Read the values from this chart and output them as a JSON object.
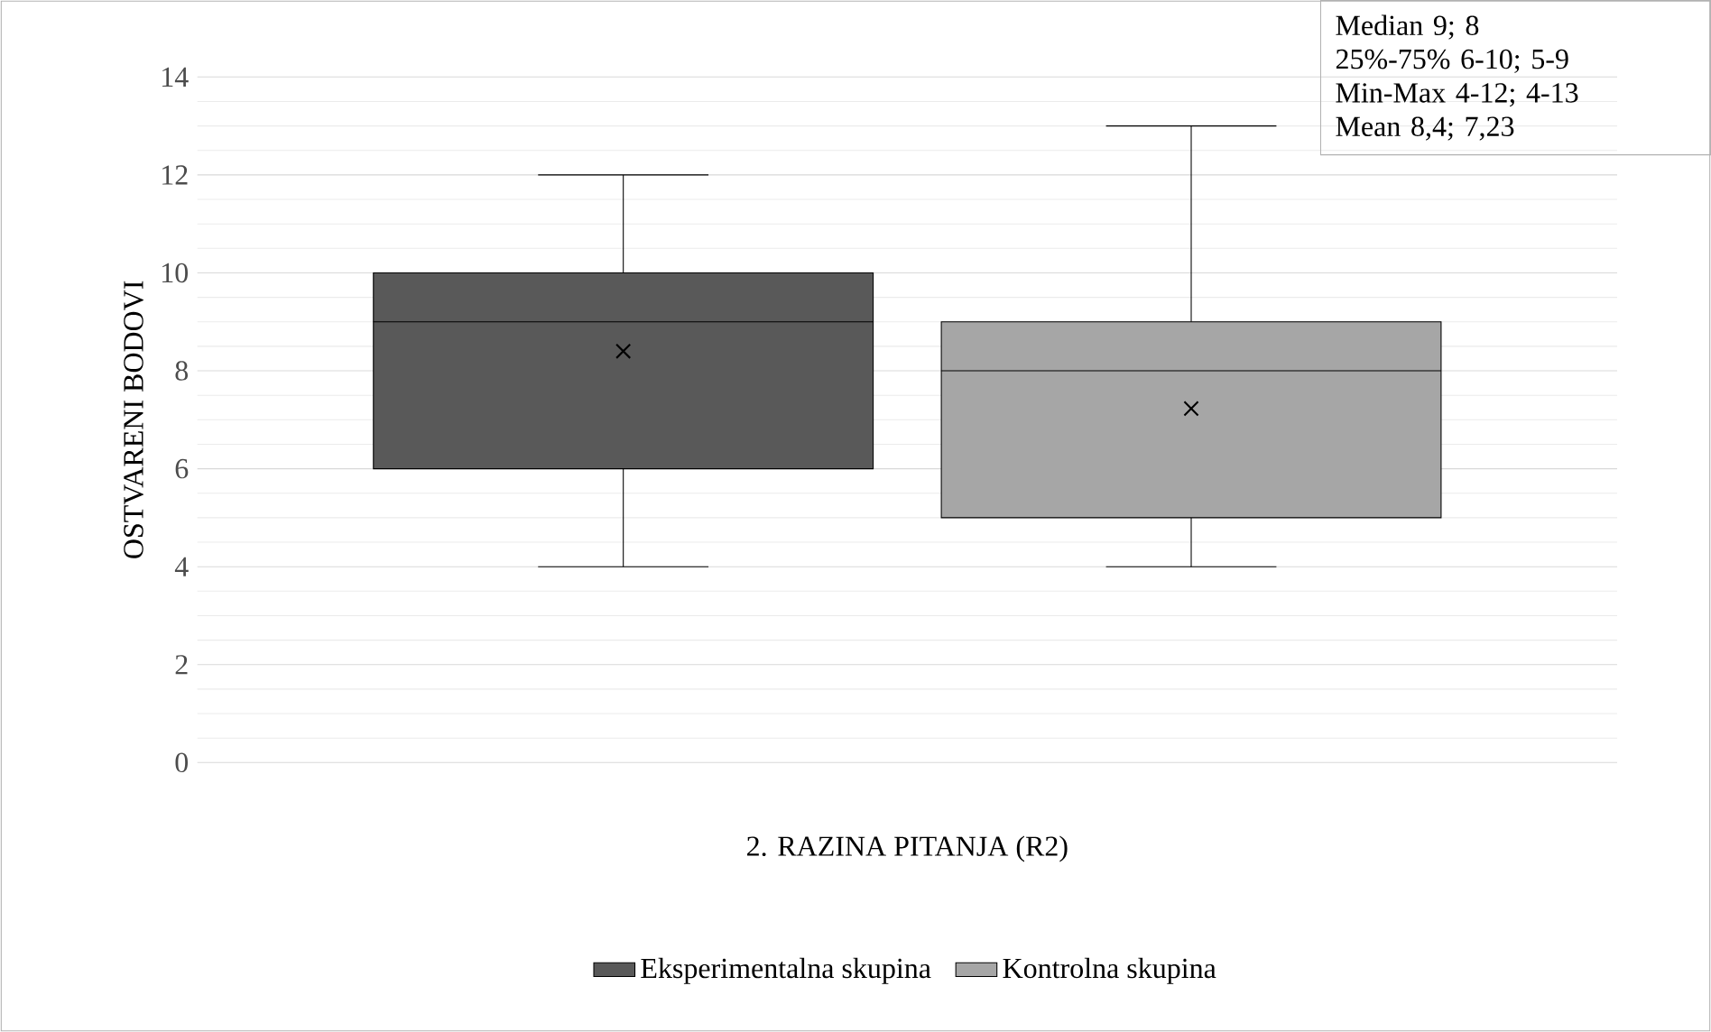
{
  "chart_data": {
    "type": "box",
    "ylabel": "OSTVARENI BODOVI",
    "xlabel": "2. RAZINA PITANJA (R2)",
    "categories": [
      null
    ],
    "series": [
      {
        "name": "Eksperimentalna skupina",
        "color": "#595959",
        "boxes": [
          {
            "low": 4,
            "q1": 6,
            "median": 9,
            "q3": 10,
            "high": 12,
            "mean": 8.4
          }
        ]
      },
      {
        "name": "Kontrolna skupina",
        "color": "#a6a6a6",
        "boxes": [
          {
            "low": 4,
            "q1": 5,
            "median": 8,
            "q3": 9,
            "high": 13,
            "mean": 7.23
          }
        ]
      }
    ],
    "ylim": [
      0,
      14
    ],
    "yticks": [
      0,
      2,
      4,
      6,
      8,
      10,
      12,
      14
    ],
    "grid": "y",
    "legend": "bottom",
    "marker": "cross",
    "annotations": [
      "Median 9; 8",
      "25%-75% 6-10; 5-9",
      "Min-Max 4-12; 4-13",
      "Mean 8,4; 7,23"
    ]
  }
}
